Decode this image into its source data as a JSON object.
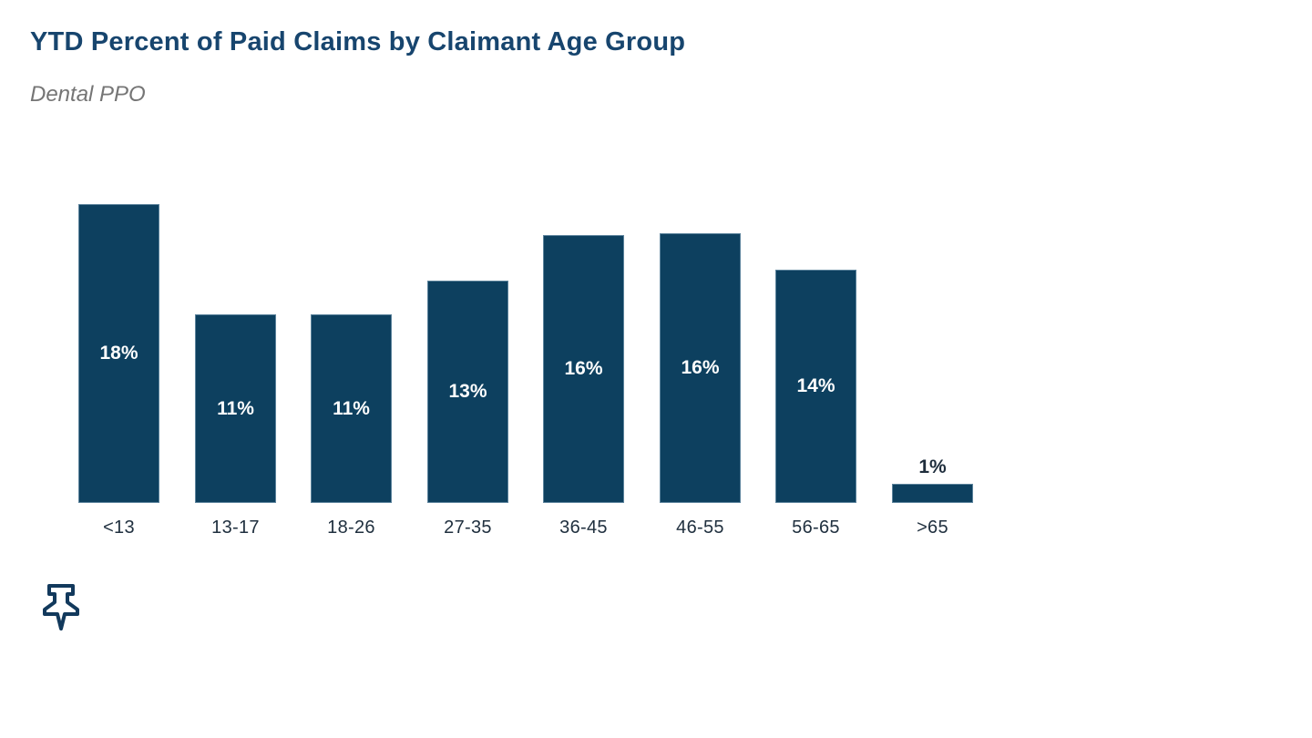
{
  "page": {
    "title": "YTD Percent of Paid Claims by Claimant Age Group",
    "subtitle": "Dental PPO"
  },
  "chart_data": {
    "type": "bar",
    "title": "YTD Percent of Paid Claims by Claimant Age Group",
    "subtitle": "Dental PPO",
    "categories": [
      "<13",
      "13-17",
      "18-26",
      "27-35",
      "36-45",
      "46-55",
      "56-65",
      ">65"
    ],
    "values": [
      18,
      11,
      11,
      13,
      16,
      16,
      14,
      1
    ],
    "value_labels": [
      "18%",
      "11%",
      "11%",
      "13%",
      "16%",
      "16%",
      "14%",
      "1%"
    ],
    "values_exact_est": [
      18.0,
      11.35,
      11.35,
      13.4,
      16.15,
      16.26,
      14.05,
      1.15
    ],
    "label_placement": [
      "inside",
      "inside",
      "inside",
      "inside",
      "inside",
      "inside",
      "inside",
      "outside"
    ],
    "xlabel": "",
    "ylabel": "",
    "ylim": [
      0,
      18
    ],
    "grid": false,
    "axes_shown": false,
    "legend": "none",
    "bar_color": "#0D405F",
    "inside_label_color": "#FFFFFF",
    "outside_label_color": "#1E2D3C",
    "category_label_color": "#20303F"
  },
  "icons": {
    "pin": {
      "name": "pin-icon",
      "color": "#12395C"
    }
  },
  "colors": {
    "background": "#FFFFFF",
    "title": "#17456E",
    "subtitle": "#757575"
  }
}
